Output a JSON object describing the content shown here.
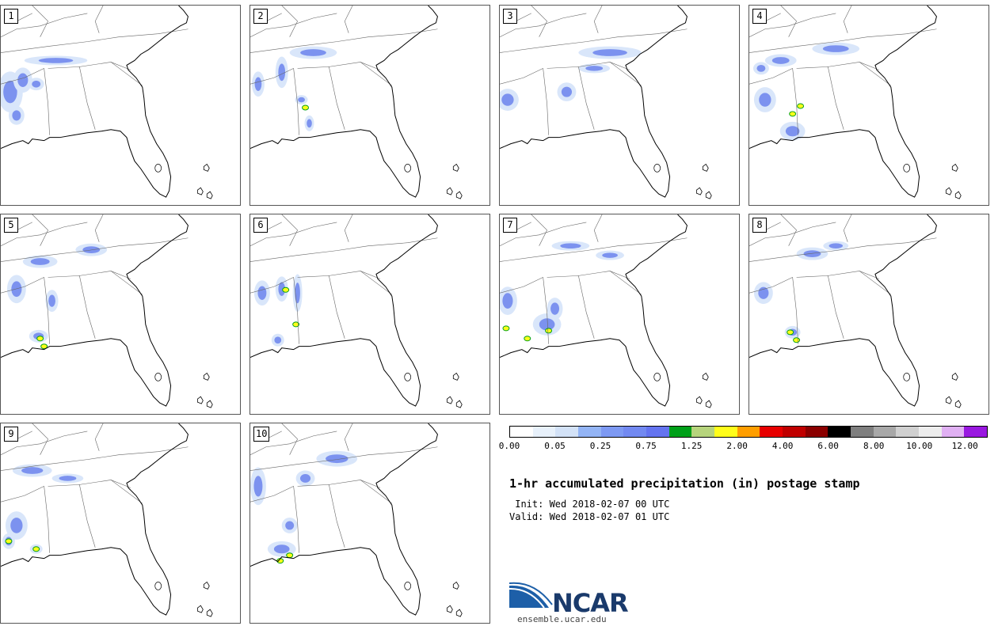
{
  "panels": [
    {
      "label": "1"
    },
    {
      "label": "2"
    },
    {
      "label": "3"
    },
    {
      "label": "4"
    },
    {
      "label": "5"
    },
    {
      "label": "6"
    },
    {
      "label": "7"
    },
    {
      "label": "8"
    },
    {
      "label": "9"
    },
    {
      "label": "10"
    }
  ],
  "colorbar": {
    "colors": [
      "#ffffff",
      "#e8f1fb",
      "#d3e2f7",
      "#93b4f5",
      "#7d99f3",
      "#7289f1",
      "#6474f0",
      "#00a019",
      "#b6d47c",
      "#fffd1a",
      "#ff9e00",
      "#e80000",
      "#c00000",
      "#8b0000",
      "#000000",
      "#7f7f7f",
      "#a8a8a8",
      "#d0d0d0",
      "#ededed",
      "#e0b0f3",
      "#9918e0"
    ],
    "tick_labels": [
      "0.00",
      "0.05",
      "0.25",
      "0.75",
      "1.25",
      "2.00",
      "4.00",
      "6.00",
      "8.00",
      "10.00",
      "12.00"
    ]
  },
  "title": "1-hr accumulated precipitation (in) postage stamp",
  "init_line": " Init: Wed 2018-02-07 00 UTC",
  "valid_line": "Valid: Wed 2018-02-07 01 UTC",
  "logo": {
    "word": "NCAR",
    "url": "ensemble.ucar.edu",
    "colors": {
      "blue": "#1d5fa8",
      "navy": "#1a3a6b"
    }
  }
}
